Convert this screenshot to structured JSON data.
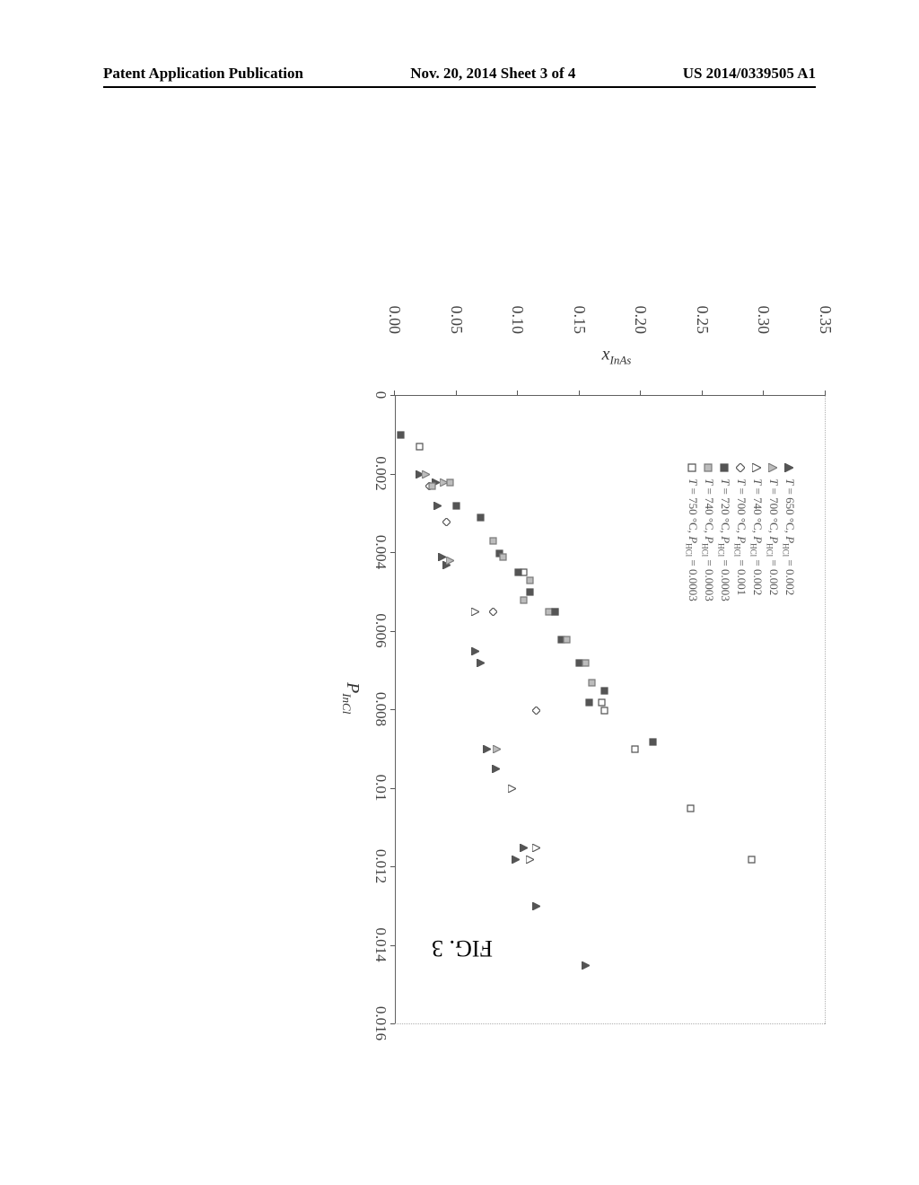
{
  "header": {
    "left": "Patent Application Publication",
    "center": "Nov. 20, 2014  Sheet 3 of 4",
    "right": "US 2014/0339505 A1"
  },
  "figure": {
    "caption": "FIG. 3",
    "type": "scatter",
    "xlabel_html": "P<sub>InCl</sub>",
    "ylabel_html": "x<sub>InAs</sub>",
    "xlim": [
      0,
      0.016
    ],
    "ylim": [
      0.0,
      0.35
    ],
    "xticks": [
      0,
      0.002,
      0.004,
      0.006,
      0.008,
      0.01,
      0.012,
      0.014,
      0.016
    ],
    "yticks": [
      0.0,
      0.05,
      0.1,
      0.15,
      0.2,
      0.25,
      0.3,
      0.35
    ],
    "background_color": "#ffffff",
    "axis_color": "#606060",
    "label_color": "#444444",
    "tick_fontsize": 18,
    "label_fontsize": 20,
    "legend_fontsize": 13,
    "marker_size": 9,
    "marker_stroke": 1.2,
    "legend": [
      {
        "id": "s1",
        "shape": "triangle",
        "fill": "#555555",
        "stroke": "#555555",
        "text": "T = 650 °C, P_HCl = 0.002"
      },
      {
        "id": "s2",
        "shape": "triangle",
        "fill": "#bcbcbc",
        "stroke": "#7a7a7a",
        "text": "T = 700 °C, P_HCl = 0.002"
      },
      {
        "id": "s3",
        "shape": "triangle",
        "fill": "none",
        "stroke": "#555555",
        "text": "T = 740 °C, P_HCl = 0.002"
      },
      {
        "id": "s4",
        "shape": "diamond",
        "fill": "none",
        "stroke": "#555555",
        "text": "T = 700 °C, P_HCl = 0.001"
      },
      {
        "id": "s5",
        "shape": "square",
        "fill": "#555555",
        "stroke": "#555555",
        "text": "T = 720 °C, P_HCl = 0.0003"
      },
      {
        "id": "s6",
        "shape": "square",
        "fill": "#bcbcbc",
        "stroke": "#7a7a7a",
        "text": "T = 740 °C, P_HCl = 0.0003"
      },
      {
        "id": "s7",
        "shape": "square",
        "fill": "none",
        "stroke": "#555555",
        "text": "T = 750 °C, P_HCl = 0.0003"
      }
    ],
    "series": {
      "s1": [
        [
          0.002,
          0.02
        ],
        [
          0.0022,
          0.033
        ],
        [
          0.0028,
          0.035
        ],
        [
          0.0041,
          0.038
        ],
        [
          0.0043,
          0.042
        ],
        [
          0.0065,
          0.065
        ],
        [
          0.0068,
          0.07
        ],
        [
          0.009,
          0.075
        ],
        [
          0.0095,
          0.082
        ],
        [
          0.0115,
          0.105
        ],
        [
          0.0118,
          0.098
        ],
        [
          0.013,
          0.115
        ],
        [
          0.0145,
          0.155
        ]
      ],
      "s2": [
        [
          0.002,
          0.025
        ],
        [
          0.0022,
          0.04
        ],
        [
          0.0042,
          0.045
        ],
        [
          0.009,
          0.083
        ]
      ],
      "s3": [
        [
          0.0055,
          0.065
        ],
        [
          0.01,
          0.095
        ],
        [
          0.0115,
          0.115
        ],
        [
          0.0118,
          0.11
        ]
      ],
      "s4": [
        [
          0.0023,
          0.028
        ],
        [
          0.0032,
          0.042
        ],
        [
          0.0055,
          0.08
        ],
        [
          0.008,
          0.115
        ]
      ],
      "s5": [
        [
          0.001,
          0.005
        ],
        [
          0.0028,
          0.05
        ],
        [
          0.0031,
          0.07
        ],
        [
          0.004,
          0.085
        ],
        [
          0.0045,
          0.1
        ],
        [
          0.005,
          0.11
        ],
        [
          0.0055,
          0.13
        ],
        [
          0.0062,
          0.135
        ],
        [
          0.0068,
          0.15
        ],
        [
          0.0075,
          0.17
        ],
        [
          0.0078,
          0.158
        ],
        [
          0.0088,
          0.21
        ]
      ],
      "s6": [
        [
          0.0022,
          0.045
        ],
        [
          0.0023,
          0.03
        ],
        [
          0.0037,
          0.08
        ],
        [
          0.0041,
          0.088
        ],
        [
          0.0047,
          0.11
        ],
        [
          0.0052,
          0.105
        ],
        [
          0.0055,
          0.125
        ],
        [
          0.0062,
          0.14
        ],
        [
          0.0068,
          0.155
        ],
        [
          0.0073,
          0.16
        ]
      ],
      "s7": [
        [
          0.0013,
          0.02
        ],
        [
          0.0045,
          0.105
        ],
        [
          0.0055,
          0.13
        ],
        [
          0.0078,
          0.168
        ],
        [
          0.008,
          0.17
        ],
        [
          0.009,
          0.195
        ],
        [
          0.0105,
          0.24
        ],
        [
          0.0118,
          0.29
        ]
      ]
    }
  }
}
